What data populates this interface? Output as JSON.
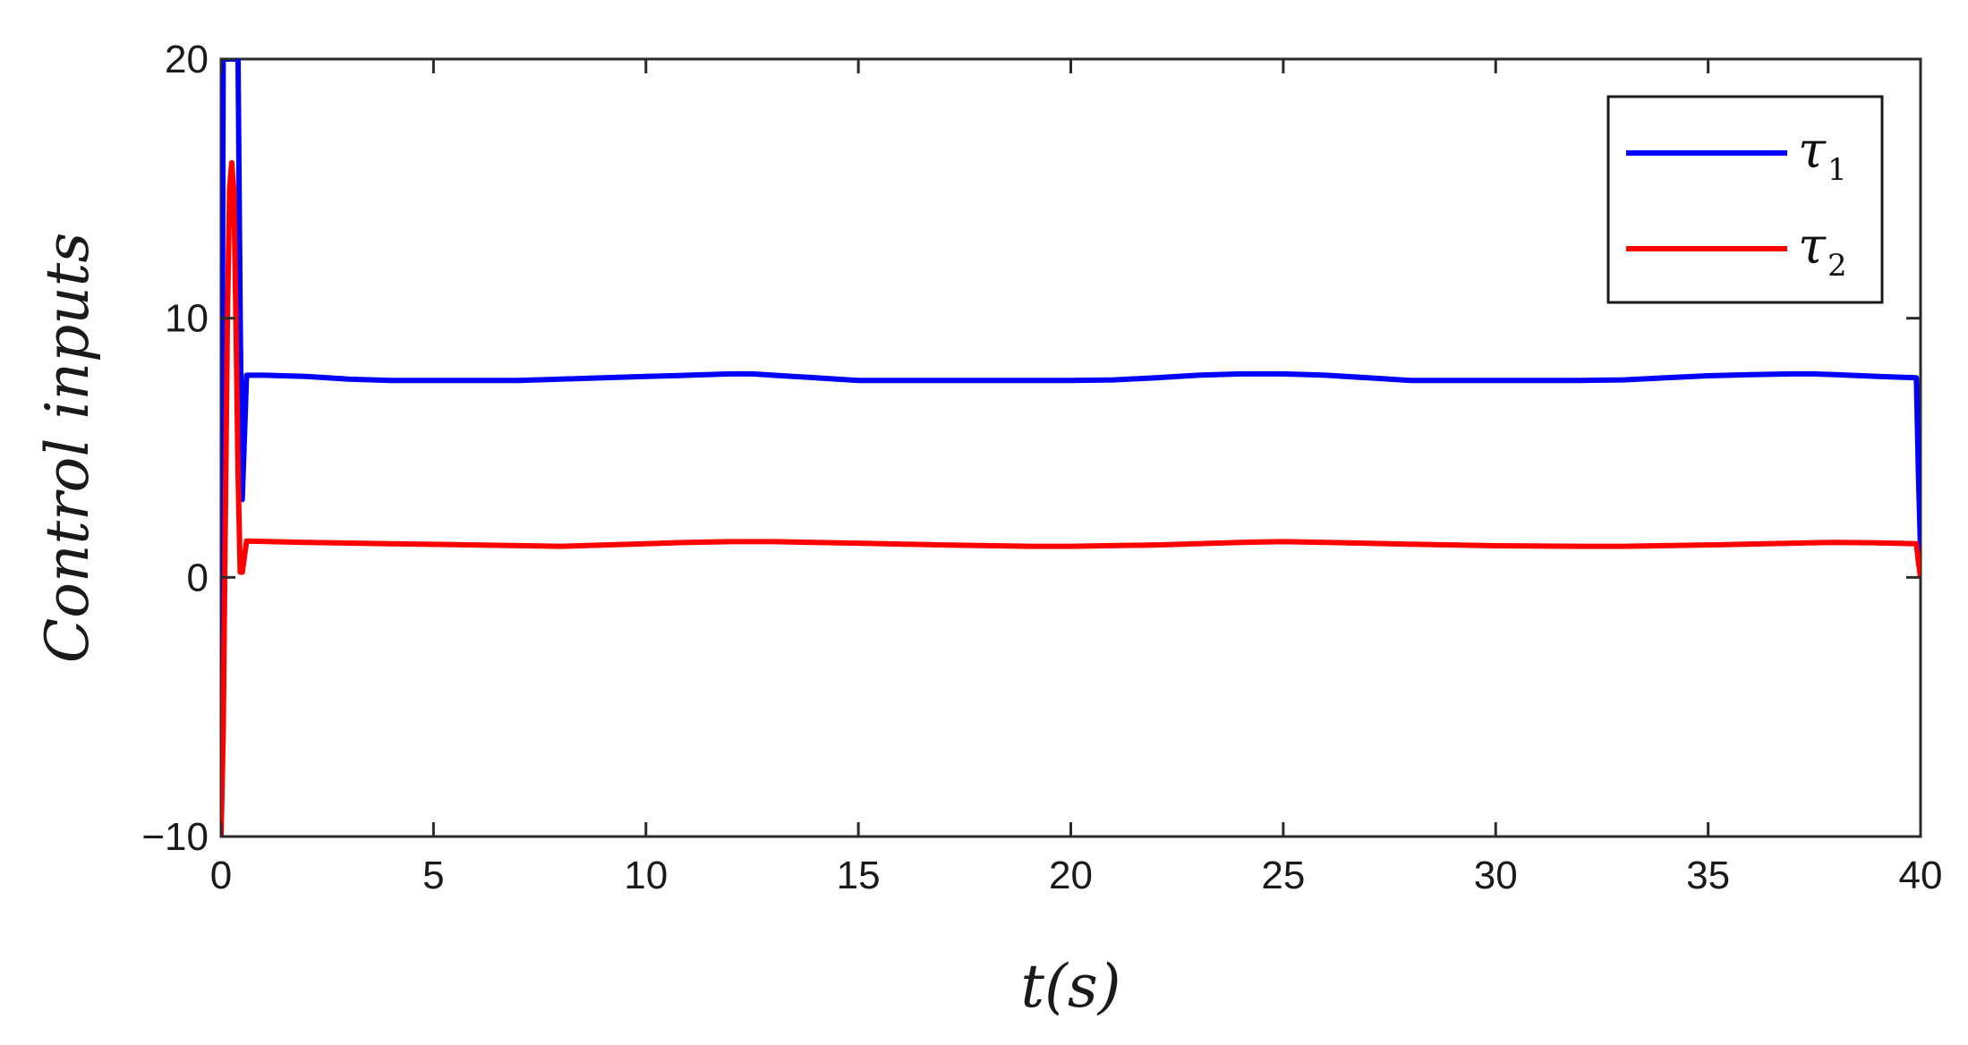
{
  "chart_data": {
    "type": "line",
    "title": "",
    "xlabel": "t(s)",
    "ylabel": "Control inputs",
    "xlim": [
      0,
      40
    ],
    "ylim": [
      -10,
      20
    ],
    "xticks": [
      "0",
      "5",
      "10",
      "15",
      "20",
      "25",
      "30",
      "35",
      "40"
    ],
    "yticks": [
      "−10",
      "0",
      "10",
      "20"
    ],
    "xtick_values": [
      0,
      5,
      10,
      15,
      20,
      25,
      30,
      35,
      40
    ],
    "ytick_values": [
      -10,
      0,
      10,
      20
    ],
    "grid": false,
    "legend_position": "top-right",
    "series": [
      {
        "name": "τ",
        "subscript": "1",
        "color": "#0000ff",
        "x": [
          0,
          0.05,
          0.1,
          0.15,
          0.2,
          0.25,
          0.3,
          0.35,
          0.4,
          0.45,
          0.5,
          0.6,
          1,
          2,
          3,
          4,
          5,
          6,
          7,
          8,
          9,
          10,
          11,
          12,
          12.5,
          13,
          14,
          15,
          16,
          17,
          18,
          19,
          20,
          21,
          22,
          23,
          24,
          25,
          26,
          27,
          28,
          29,
          30,
          31,
          32,
          33,
          34,
          35,
          36,
          37,
          37.5,
          38,
          39,
          39.9,
          39.95,
          40
        ],
        "values": [
          -10,
          20,
          20,
          20,
          20,
          20,
          20,
          20,
          20,
          10,
          3,
          7.8,
          7.8,
          7.75,
          7.65,
          7.6,
          7.6,
          7.6,
          7.6,
          7.65,
          7.7,
          7.75,
          7.8,
          7.85,
          7.85,
          7.8,
          7.7,
          7.6,
          7.6,
          7.6,
          7.6,
          7.6,
          7.6,
          7.62,
          7.7,
          7.8,
          7.85,
          7.85,
          7.8,
          7.7,
          7.6,
          7.6,
          7.6,
          7.6,
          7.6,
          7.62,
          7.7,
          7.78,
          7.82,
          7.85,
          7.85,
          7.82,
          7.75,
          7.7,
          4,
          1
        ]
      },
      {
        "name": "τ",
        "subscript": "2",
        "color": "#ff0000",
        "x": [
          0,
          0.05,
          0.1,
          0.15,
          0.2,
          0.25,
          0.3,
          0.35,
          0.4,
          0.45,
          0.5,
          0.6,
          2,
          4,
          6,
          8,
          10,
          11,
          12,
          13,
          15,
          17,
          19,
          20,
          22,
          24,
          25,
          26,
          28,
          30,
          32,
          33,
          35,
          37,
          38,
          39,
          39.9,
          39.95,
          40
        ],
        "values": [
          -10,
          -6,
          2,
          10,
          15,
          16,
          15,
          10,
          4,
          0.2,
          0.2,
          1.4,
          1.35,
          1.3,
          1.25,
          1.2,
          1.3,
          1.35,
          1.38,
          1.38,
          1.32,
          1.25,
          1.2,
          1.2,
          1.25,
          1.35,
          1.38,
          1.35,
          1.28,
          1.22,
          1.2,
          1.2,
          1.25,
          1.32,
          1.35,
          1.33,
          1.3,
          0.6,
          0
        ]
      }
    ]
  }
}
